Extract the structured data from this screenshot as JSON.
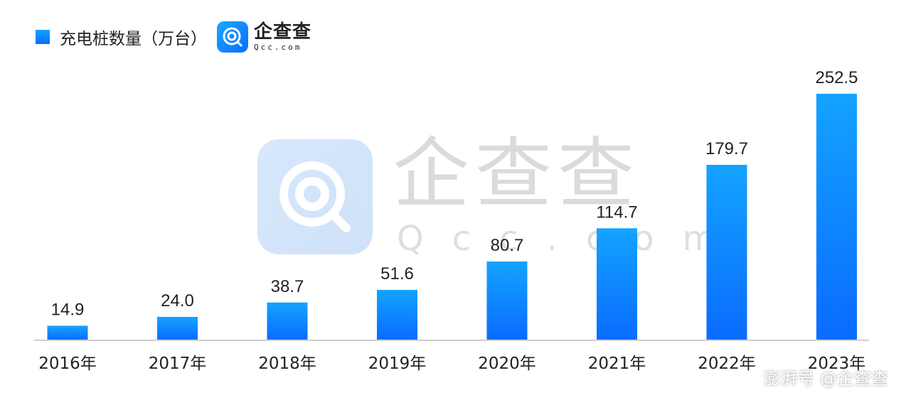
{
  "legend": {
    "label": "充电桩数量（万台）"
  },
  "logo": {
    "name_cn": "企查查",
    "name_en": "Qcc.com"
  },
  "watermark": {
    "name_cn": "企查查",
    "name_en": "Qcc.com"
  },
  "credit": "澎湃号 @企查查",
  "colors": {
    "bar_top": "#14a3ff",
    "bar_bottom": "#0a6bff",
    "axis": "#cfcfcf",
    "label": "#222222"
  },
  "chart_data": {
    "type": "bar",
    "categories": [
      "2016年",
      "2017年",
      "2018年",
      "2019年",
      "2020年",
      "2021年",
      "2022年",
      "2023年"
    ],
    "series": [
      {
        "name": "充电桩数量（万台）",
        "values": [
          14.9,
          24.0,
          38.7,
          51.6,
          80.7,
          114.7,
          179.7,
          252.5
        ]
      }
    ],
    "value_labels": [
      "14.9",
      "24.0",
      "38.7",
      "51.6",
      "80.7",
      "114.7",
      "179.7",
      "252.5"
    ],
    "ylim": [
      0,
      252.5
    ],
    "grid": false,
    "legend_position": "top-left"
  }
}
